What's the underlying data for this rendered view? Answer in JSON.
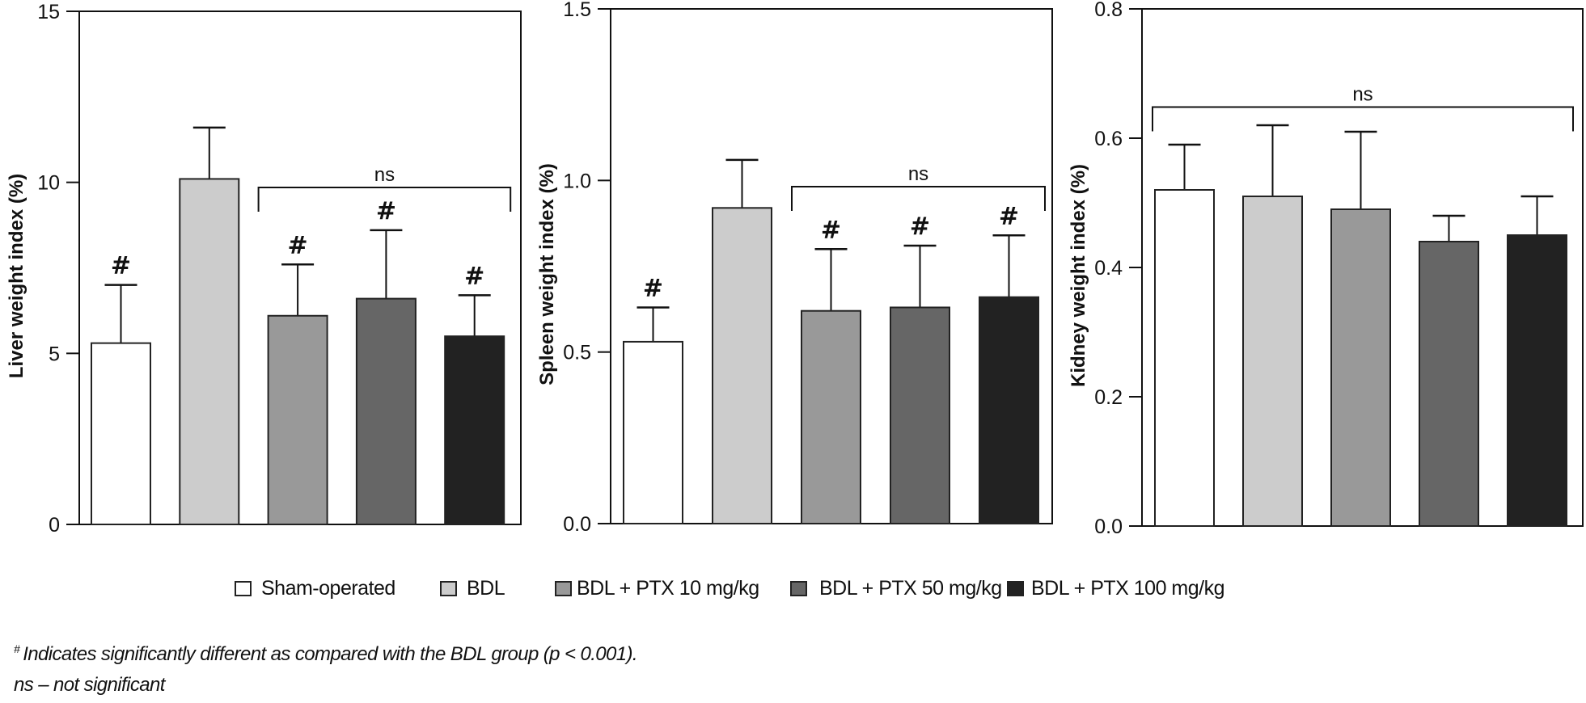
{
  "chart_data": [
    {
      "type": "bar",
      "title": "",
      "xlabel": "",
      "ylabel": "Liver weight index (%)",
      "ylim": [
        0,
        15
      ],
      "yticks": [
        0,
        5,
        10,
        15
      ],
      "ytick_labels": [
        "0",
        "5",
        "10",
        "15"
      ],
      "categories": [
        "Sham-operated",
        "BDL",
        "BDL + PTX 10 mg/kg",
        "BDL + PTX 50 mg/kg",
        "BDL + PTX 100 mg/kg"
      ],
      "values": [
        5.3,
        10.1,
        6.1,
        6.6,
        5.5
      ],
      "error_upper": [
        7.0,
        11.6,
        7.6,
        8.6,
        6.7
      ],
      "markers": [
        "#",
        "",
        "#",
        "#",
        "#"
      ],
      "bracket": {
        "from": 2,
        "to": 4,
        "label": "ns"
      }
    },
    {
      "type": "bar",
      "title": "",
      "xlabel": "",
      "ylabel": "Spleen weight index (%)",
      "ylim": [
        0,
        1.5
      ],
      "yticks": [
        0,
        0.5,
        1.0,
        1.5
      ],
      "ytick_labels": [
        "0.0",
        "0.5",
        "1.0",
        "1.5"
      ],
      "categories": [
        "Sham-operated",
        "BDL",
        "BDL + PTX 10 mg/kg",
        "BDL + PTX 50 mg/kg",
        "BDL + PTX 100 mg/kg"
      ],
      "values": [
        0.53,
        0.92,
        0.62,
        0.63,
        0.66
      ],
      "error_upper": [
        0.63,
        1.06,
        0.8,
        0.81,
        0.84
      ],
      "markers": [
        "#",
        "",
        "#",
        "#",
        "#"
      ],
      "bracket": {
        "from": 2,
        "to": 4,
        "label": "ns"
      }
    },
    {
      "type": "bar",
      "title": "",
      "xlabel": "",
      "ylabel": "Kidney weight index (%)",
      "ylim": [
        0,
        0.8
      ],
      "yticks": [
        0,
        0.2,
        0.4,
        0.6,
        0.8
      ],
      "ytick_labels": [
        "0.0",
        "0.2",
        "0.4",
        "0.6",
        "0.8"
      ],
      "categories": [
        "Sham-operated",
        "BDL",
        "BDL + PTX 10 mg/kg",
        "BDL + PTX 50 mg/kg",
        "BDL + PTX 100 mg/kg"
      ],
      "values": [
        0.52,
        0.51,
        0.49,
        0.44,
        0.45
      ],
      "error_upper": [
        0.59,
        0.62,
        0.61,
        0.48,
        0.51
      ],
      "markers": [
        "",
        "",
        "",
        "",
        ""
      ],
      "bracket": {
        "from": 0,
        "to": 4,
        "label": "ns"
      }
    }
  ],
  "series_colors": [
    "#ffffff",
    "#cccccc",
    "#999999",
    "#666666",
    "#222222"
  ],
  "legend": {
    "position": "bottom",
    "items": [
      {
        "label": "Sham-operated",
        "color": "#ffffff"
      },
      {
        "label": "BDL",
        "color": "#cccccc"
      },
      {
        "label": "BDL + PTX 10 mg/kg",
        "color": "#999999"
      },
      {
        "label": "BDL + PTX 50 mg/kg",
        "color": "#666666"
      },
      {
        "label": "BDL + PTX 100 mg/kg",
        "color": "#222222"
      }
    ]
  },
  "footnote": {
    "symbol": "#",
    "line1": "Indicates significantly different as compared with the BDL group (p < 0.001).",
    "line2": "ns – not significant"
  }
}
